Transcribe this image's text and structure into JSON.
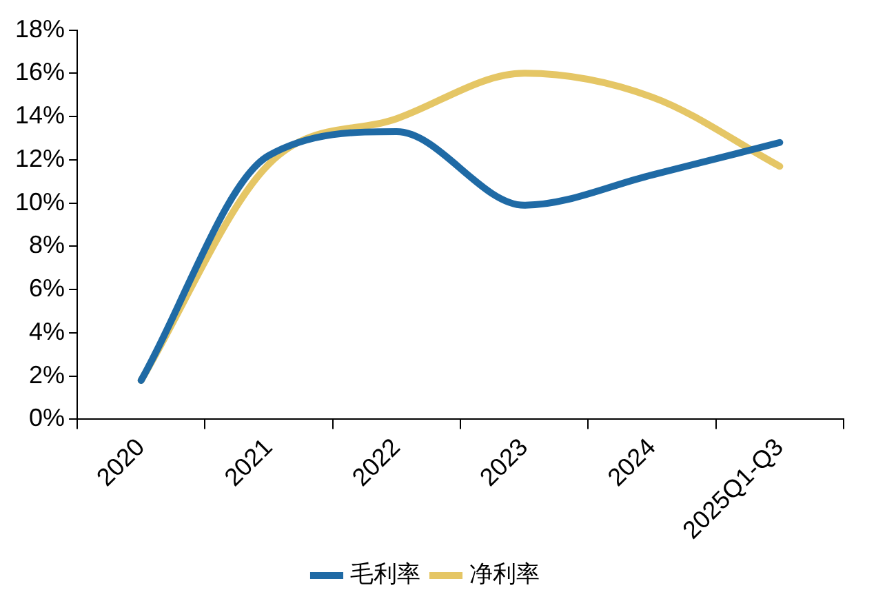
{
  "chart_data": {
    "type": "line",
    "categories": [
      "2020",
      "2021",
      "2022",
      "2023",
      "2024",
      "2025Q1-Q3"
    ],
    "series": [
      {
        "name": "毛利率",
        "color": "#1f6aa5",
        "values": [
          1.8,
          12.2,
          13.3,
          9.9,
          11.3,
          12.8
        ]
      },
      {
        "name": "净利率",
        "color": "#e5c665",
        "values": [
          1.8,
          11.8,
          13.9,
          16.0,
          14.9,
          11.7
        ]
      }
    ],
    "ylim": [
      0,
      18
    ],
    "yticks": [
      {
        "value": 0,
        "label": "0%"
      },
      {
        "value": 2,
        "label": "2%"
      },
      {
        "value": 4,
        "label": "4%"
      },
      {
        "value": 6,
        "label": "6%"
      },
      {
        "value": 8,
        "label": "8%"
      },
      {
        "value": 10,
        "label": "10%"
      },
      {
        "value": 12,
        "label": "12%"
      },
      {
        "value": 14,
        "label": "14%"
      },
      {
        "value": 16,
        "label": "16%"
      },
      {
        "value": 18,
        "label": "18%"
      }
    ],
    "grid": false,
    "legend": "bottom",
    "marker": "none",
    "line_style": "solid"
  }
}
